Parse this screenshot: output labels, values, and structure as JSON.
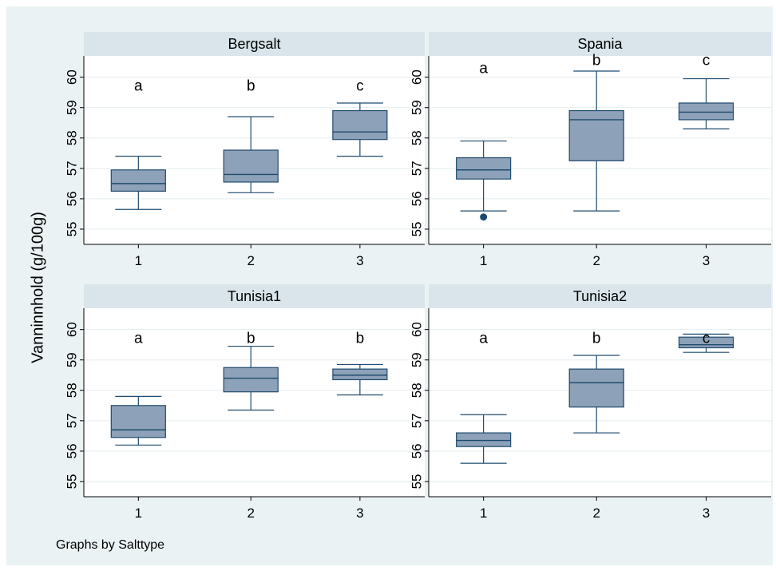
{
  "chart_data": {
    "type": "box",
    "ylabel": "Vanninnhold (g/100g)",
    "note": "Graphs by Salttype",
    "ylim": [
      54.5,
      60.7
    ],
    "yticks": [
      55,
      56,
      57,
      58,
      59,
      60
    ],
    "categories": [
      "1",
      "2",
      "3"
    ],
    "colors": {
      "box_fill": "#8da1b8",
      "box_stroke": "#1f4b6e",
      "strip": "#d9e5ea",
      "grid": "#e3eced"
    },
    "panels": [
      {
        "title": "Bergsalt",
        "letters": [
          "a",
          "b",
          "c"
        ],
        "boxes": [
          {
            "whisker_low": 55.65,
            "q1": 56.25,
            "median": 56.5,
            "q3": 56.95,
            "whisker_high": 57.4,
            "outliers": []
          },
          {
            "whisker_low": 56.2,
            "q1": 56.55,
            "median": 56.8,
            "q3": 57.6,
            "whisker_high": 58.7,
            "outliers": []
          },
          {
            "whisker_low": 57.4,
            "q1": 57.95,
            "median": 58.2,
            "q3": 58.9,
            "whisker_high": 59.15,
            "outliers": []
          }
        ]
      },
      {
        "title": "Spania",
        "letters": [
          "a",
          "b",
          "c"
        ],
        "boxes": [
          {
            "whisker_low": 55.6,
            "q1": 56.65,
            "median": 56.95,
            "q3": 57.35,
            "whisker_high": 57.9,
            "outliers": [
              55.4
            ]
          },
          {
            "whisker_low": 55.6,
            "q1": 57.25,
            "median": 58.6,
            "q3": 58.9,
            "whisker_high": 60.2,
            "outliers": []
          },
          {
            "whisker_low": 58.3,
            "q1": 58.6,
            "median": 58.85,
            "q3": 59.15,
            "whisker_high": 59.95,
            "outliers": []
          }
        ]
      },
      {
        "title": "Tunisia1",
        "letters": [
          "a",
          "b",
          "b"
        ],
        "boxes": [
          {
            "whisker_low": 56.2,
            "q1": 56.45,
            "median": 56.7,
            "q3": 57.5,
            "whisker_high": 57.8,
            "outliers": []
          },
          {
            "whisker_low": 57.35,
            "q1": 57.95,
            "median": 58.4,
            "q3": 58.75,
            "whisker_high": 59.45,
            "outliers": []
          },
          {
            "whisker_low": 57.85,
            "q1": 58.35,
            "median": 58.5,
            "q3": 58.7,
            "whisker_high": 58.85,
            "outliers": []
          }
        ]
      },
      {
        "title": "Tunisia2",
        "letters": [
          "a",
          "b",
          "c"
        ],
        "boxes": [
          {
            "whisker_low": 55.6,
            "q1": 56.15,
            "median": 56.35,
            "q3": 56.6,
            "whisker_high": 57.2,
            "outliers": []
          },
          {
            "whisker_low": 56.6,
            "q1": 57.45,
            "median": 58.25,
            "q3": 58.7,
            "whisker_high": 59.15,
            "outliers": []
          },
          {
            "whisker_low": 59.25,
            "q1": 59.4,
            "median": 59.5,
            "q3": 59.75,
            "whisker_high": 59.85,
            "outliers": []
          }
        ]
      }
    ]
  }
}
